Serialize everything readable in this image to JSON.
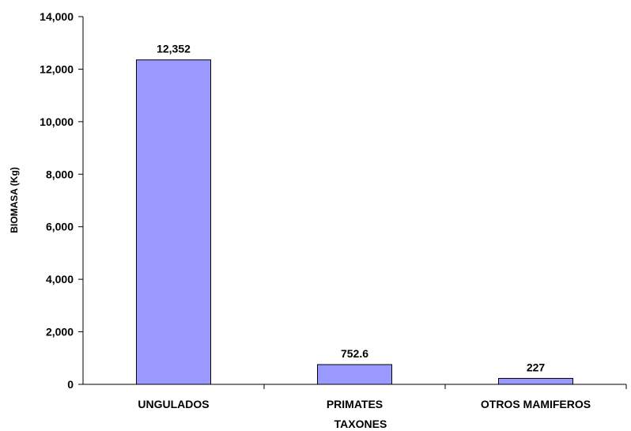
{
  "chart_data": {
    "type": "bar",
    "categories": [
      "UNGULADOS",
      "PRIMATES",
      "OTROS MAMIFEROS"
    ],
    "values": [
      12352,
      752.6,
      227
    ],
    "data_labels": [
      "12,352",
      "752.6",
      "227"
    ],
    "title": "",
    "xlabel": "TAXONES",
    "ylabel": "BIOMASA (Kg)",
    "ylim": [
      0,
      14000
    ],
    "yticks": [
      0,
      2000,
      4000,
      6000,
      8000,
      10000,
      12000,
      14000
    ],
    "ytick_labels": [
      "0",
      "2,000",
      "4,000",
      "6,000",
      "8,000",
      "10,000",
      "12,000",
      "14,000"
    ],
    "grid": false,
    "legend": "none",
    "colors": {
      "bar_fill": "#9999ff",
      "bar_stroke": "#000000",
      "axis": "#000000"
    }
  }
}
